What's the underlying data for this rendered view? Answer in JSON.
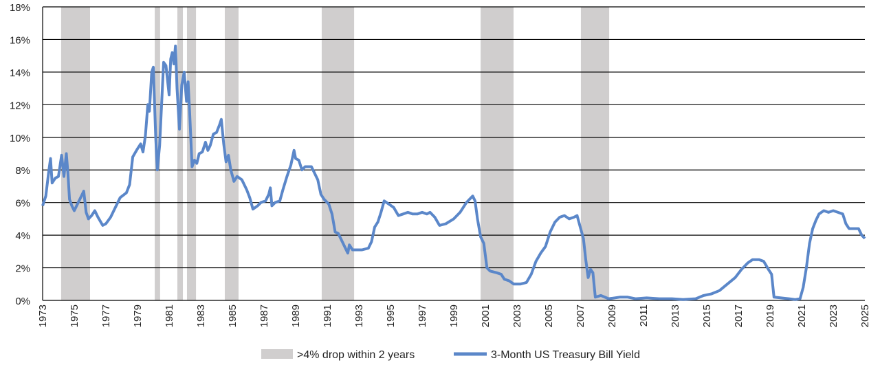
{
  "chart_data": {
    "type": "line",
    "title": "",
    "xlabel": "",
    "ylabel": "",
    "xlim": [
      1973,
      2025
    ],
    "ylim": [
      0,
      18
    ],
    "grid": true,
    "legend_placement": "bottom",
    "x_tick_labels": [
      "1973",
      "1975",
      "1977",
      "1979",
      "1981",
      "1983",
      "1985",
      "1987",
      "1989",
      "1991",
      "1993",
      "1995",
      "1997",
      "1999",
      "2001",
      "2003",
      "2005",
      "2007",
      "2009",
      "2011",
      "2013",
      "2015",
      "2017",
      "2019",
      "2021",
      "2023",
      "2025"
    ],
    "y_tick_labels": [
      "0%",
      "2%",
      "4%",
      "6%",
      "8%",
      "10%",
      "12%",
      "14%",
      "16%",
      "18%"
    ],
    "y_ticks": [
      0,
      2,
      4,
      6,
      8,
      10,
      12,
      14,
      16,
      18
    ],
    "shaded_regions": {
      "name": ">4% drop within 2 years",
      "color": "#d0cece",
      "ranges": [
        [
          1974.17,
          1976.0
        ],
        [
          1980.09,
          1980.43
        ],
        [
          1981.52,
          1981.87
        ],
        [
          1982.13,
          1982.7
        ],
        [
          1984.52,
          1985.39
        ],
        [
          1990.65,
          1992.7
        ],
        [
          2000.7,
          2002.78
        ],
        [
          2007.04,
          2008.83
        ]
      ]
    },
    "series": [
      {
        "name": "3-Month US Treasury Bill Yield",
        "color": "#5b87c9",
        "points": [
          [
            1973.0,
            5.8
          ],
          [
            1973.2,
            6.4
          ],
          [
            1973.4,
            8.0
          ],
          [
            1973.5,
            8.7
          ],
          [
            1973.6,
            7.2
          ],
          [
            1973.8,
            7.5
          ],
          [
            1974.0,
            7.6
          ],
          [
            1974.2,
            8.9
          ],
          [
            1974.35,
            7.6
          ],
          [
            1974.5,
            9.0
          ],
          [
            1974.6,
            7.8
          ],
          [
            1974.7,
            6.2
          ],
          [
            1974.85,
            5.8
          ],
          [
            1975.0,
            5.5
          ],
          [
            1975.2,
            5.9
          ],
          [
            1975.45,
            6.4
          ],
          [
            1975.6,
            6.7
          ],
          [
            1975.75,
            5.4
          ],
          [
            1975.9,
            5.0
          ],
          [
            1976.1,
            5.2
          ],
          [
            1976.3,
            5.5
          ],
          [
            1976.5,
            5.1
          ],
          [
            1976.8,
            4.6
          ],
          [
            1977.0,
            4.7
          ],
          [
            1977.3,
            5.1
          ],
          [
            1977.5,
            5.5
          ],
          [
            1977.9,
            6.3
          ],
          [
            1978.3,
            6.6
          ],
          [
            1978.5,
            7.1
          ],
          [
            1978.7,
            8.8
          ],
          [
            1979.0,
            9.3
          ],
          [
            1979.2,
            9.6
          ],
          [
            1979.35,
            9.1
          ],
          [
            1979.5,
            10.1
          ],
          [
            1979.65,
            12.0
          ],
          [
            1979.75,
            11.6
          ],
          [
            1979.9,
            14.0
          ],
          [
            1980.0,
            14.3
          ],
          [
            1980.15,
            10.0
          ],
          [
            1980.25,
            8.0
          ],
          [
            1980.4,
            9.5
          ],
          [
            1980.55,
            12.5
          ],
          [
            1980.65,
            14.6
          ],
          [
            1980.8,
            14.4
          ],
          [
            1981.0,
            12.6
          ],
          [
            1981.1,
            14.8
          ],
          [
            1981.2,
            15.2
          ],
          [
            1981.3,
            14.5
          ],
          [
            1981.4,
            15.6
          ],
          [
            1981.5,
            13.0
          ],
          [
            1981.65,
            10.5
          ],
          [
            1981.8,
            13.2
          ],
          [
            1981.95,
            14.0
          ],
          [
            1982.1,
            12.2
          ],
          [
            1982.2,
            13.4
          ],
          [
            1982.3,
            11.5
          ],
          [
            1982.45,
            8.2
          ],
          [
            1982.6,
            8.6
          ],
          [
            1982.75,
            8.4
          ],
          [
            1982.9,
            9.0
          ],
          [
            1983.1,
            9.1
          ],
          [
            1983.3,
            9.7
          ],
          [
            1983.45,
            9.2
          ],
          [
            1983.6,
            9.5
          ],
          [
            1983.8,
            10.2
          ],
          [
            1984.0,
            10.3
          ],
          [
            1984.2,
            10.8
          ],
          [
            1984.3,
            11.1
          ],
          [
            1984.45,
            9.6
          ],
          [
            1984.6,
            8.5
          ],
          [
            1984.75,
            8.9
          ],
          [
            1984.9,
            8.0
          ],
          [
            1985.1,
            7.3
          ],
          [
            1985.3,
            7.6
          ],
          [
            1985.6,
            7.4
          ],
          [
            1985.9,
            6.8
          ],
          [
            1986.1,
            6.3
          ],
          [
            1986.3,
            5.6
          ],
          [
            1986.6,
            5.8
          ],
          [
            1986.8,
            6.0
          ],
          [
            1987.1,
            6.1
          ],
          [
            1987.3,
            6.5
          ],
          [
            1987.4,
            6.9
          ],
          [
            1987.5,
            5.8
          ],
          [
            1987.7,
            6.0
          ],
          [
            1988.0,
            6.1
          ],
          [
            1988.2,
            6.8
          ],
          [
            1988.45,
            7.6
          ],
          [
            1988.7,
            8.3
          ],
          [
            1988.9,
            9.2
          ],
          [
            1989.0,
            8.7
          ],
          [
            1989.2,
            8.6
          ],
          [
            1989.4,
            8.0
          ],
          [
            1989.6,
            8.2
          ],
          [
            1990.0,
            8.2
          ],
          [
            1990.2,
            7.8
          ],
          [
            1990.4,
            7.4
          ],
          [
            1990.6,
            6.5
          ],
          [
            1990.8,
            6.2
          ],
          [
            1991.1,
            5.9
          ],
          [
            1991.3,
            5.3
          ],
          [
            1991.5,
            4.2
          ],
          [
            1991.7,
            4.1
          ],
          [
            1991.9,
            3.7
          ],
          [
            1992.1,
            3.3
          ],
          [
            1992.3,
            2.9
          ],
          [
            1992.4,
            3.4
          ],
          [
            1992.6,
            3.1
          ],
          [
            1992.9,
            3.1
          ],
          [
            1993.2,
            3.1
          ],
          [
            1993.6,
            3.2
          ],
          [
            1993.8,
            3.6
          ],
          [
            1994.0,
            4.5
          ],
          [
            1994.2,
            4.8
          ],
          [
            1994.4,
            5.4
          ],
          [
            1994.6,
            6.1
          ],
          [
            1994.9,
            5.9
          ],
          [
            1995.2,
            5.7
          ],
          [
            1995.5,
            5.2
          ],
          [
            1995.8,
            5.3
          ],
          [
            1996.1,
            5.4
          ],
          [
            1996.4,
            5.3
          ],
          [
            1996.7,
            5.3
          ],
          [
            1997.0,
            5.4
          ],
          [
            1997.3,
            5.3
          ],
          [
            1997.5,
            5.4
          ],
          [
            1997.8,
            5.1
          ],
          [
            1998.1,
            4.6
          ],
          [
            1998.5,
            4.7
          ],
          [
            1999.0,
            5.0
          ],
          [
            1999.4,
            5.4
          ],
          [
            1999.8,
            6.0
          ],
          [
            2000.0,
            6.2
          ],
          [
            2000.2,
            6.4
          ],
          [
            2000.35,
            6.1
          ],
          [
            2000.5,
            5.0
          ],
          [
            2000.7,
            3.9
          ],
          [
            2000.9,
            3.5
          ],
          [
            2001.1,
            2.0
          ],
          [
            2001.3,
            1.8
          ],
          [
            2001.7,
            1.7
          ],
          [
            2002.0,
            1.6
          ],
          [
            2002.2,
            1.3
          ],
          [
            2002.5,
            1.2
          ],
          [
            2002.8,
            1.0
          ],
          [
            2003.2,
            1.0
          ],
          [
            2003.6,
            1.1
          ],
          [
            2003.9,
            1.6
          ],
          [
            2004.2,
            2.4
          ],
          [
            2004.5,
            2.9
          ],
          [
            2004.8,
            3.3
          ],
          [
            2005.1,
            4.2
          ],
          [
            2005.4,
            4.8
          ],
          [
            2005.7,
            5.1
          ],
          [
            2006.0,
            5.2
          ],
          [
            2006.3,
            5.0
          ],
          [
            2006.6,
            5.1
          ],
          [
            2006.8,
            5.2
          ],
          [
            2007.0,
            4.5
          ],
          [
            2007.2,
            3.8
          ],
          [
            2007.35,
            2.5
          ],
          [
            2007.5,
            1.4
          ],
          [
            2007.65,
            1.9
          ],
          [
            2007.8,
            1.7
          ],
          [
            2007.95,
            0.2
          ],
          [
            2008.3,
            0.3
          ],
          [
            2008.8,
            0.1
          ],
          [
            2009.5,
            0.2
          ],
          [
            2010.0,
            0.2
          ],
          [
            2010.5,
            0.1
          ],
          [
            2011.2,
            0.15
          ],
          [
            2012.0,
            0.1
          ],
          [
            2012.8,
            0.1
          ],
          [
            2013.5,
            0.05
          ],
          [
            2014.3,
            0.1
          ],
          [
            2014.8,
            0.3
          ],
          [
            2015.3,
            0.4
          ],
          [
            2015.8,
            0.6
          ],
          [
            2016.3,
            1.0
          ],
          [
            2016.8,
            1.4
          ],
          [
            2017.2,
            1.9
          ],
          [
            2017.6,
            2.3
          ],
          [
            2017.9,
            2.5
          ],
          [
            2018.3,
            2.5
          ],
          [
            2018.6,
            2.4
          ],
          [
            2018.9,
            1.9
          ],
          [
            2019.1,
            1.6
          ],
          [
            2019.25,
            0.2
          ],
          [
            2019.7,
            0.15
          ],
          [
            2020.2,
            0.1
          ],
          [
            2020.6,
            0.05
          ],
          [
            2020.9,
            0.1
          ],
          [
            2021.1,
            0.8
          ],
          [
            2021.3,
            2.0
          ],
          [
            2021.5,
            3.5
          ],
          [
            2021.7,
            4.4
          ],
          [
            2021.9,
            4.9
          ],
          [
            2022.1,
            5.3
          ],
          [
            2022.4,
            5.5
          ],
          [
            2022.7,
            5.4
          ],
          [
            2023.0,
            5.5
          ],
          [
            2023.3,
            5.4
          ],
          [
            2023.6,
            5.3
          ],
          [
            2023.8,
            4.7
          ],
          [
            2024.0,
            4.4
          ],
          [
            2024.3,
            4.4
          ],
          [
            2024.6,
            4.4
          ],
          [
            2024.8,
            4.0
          ],
          [
            2025.0,
            3.8
          ]
        ]
      }
    ]
  }
}
